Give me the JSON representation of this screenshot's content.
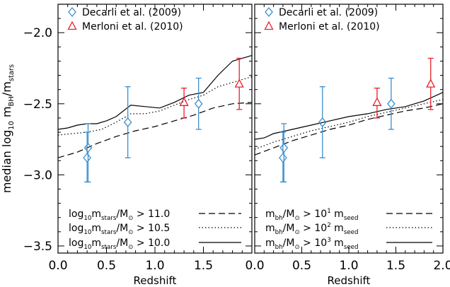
{
  "chart_data": [
    {
      "panel": "left",
      "type": "line",
      "xlabel": "Redshift",
      "ylabel": "median log10 mBH/mstars",
      "ylabel_parts": {
        "prefix": "median log",
        "log_sub": "10",
        "m": "m",
        "num_sub": "BH",
        "slash": "/m",
        "den_sub": "stars"
      },
      "xlim": [
        0.0,
        2.0
      ],
      "ylim": [
        -3.55,
        -1.8
      ],
      "xticks": [
        "0.0",
        "0.5",
        "1.0",
        "1.5"
      ],
      "yticks": [
        "-2.0",
        "-2.5",
        "-3.0",
        "-3.5"
      ],
      "points_series": [
        {
          "name": "Decarli et al. (2009)",
          "marker": "diamond",
          "color": "#3a8fcf",
          "points": [
            {
              "x": 0.31,
              "y": -2.81,
              "lo": -3.05,
              "hi": -2.64
            },
            {
              "x": 0.3,
              "y": -2.88,
              "lo": -3.05,
              "hi": -2.7
            },
            {
              "x": 0.72,
              "y": -2.63,
              "lo": -2.88,
              "hi": -2.38
            },
            {
              "x": 1.45,
              "y": -2.5,
              "lo": -2.68,
              "hi": -2.32
            }
          ]
        },
        {
          "name": "Merloni et al. (2010)",
          "marker": "triangle",
          "color": "#e8202a",
          "points": [
            {
              "x": 1.3,
              "y": -2.49,
              "lo": -2.6,
              "hi": -2.39
            },
            {
              "x": 1.87,
              "y": -2.36,
              "lo": -2.54,
              "hi": -2.18
            }
          ]
        }
      ],
      "line_series": [
        {
          "legend_parts": [
            "log",
            "10",
            "m",
            "stars",
            "/M",
            "⊙",
            " > 11.0"
          ],
          "dash": "dashed",
          "x": [
            0.0,
            0.2,
            0.4,
            0.6,
            0.8,
            1.0,
            1.2,
            1.4,
            1.6,
            1.8,
            2.0
          ],
          "y": [
            -2.88,
            -2.84,
            -2.78,
            -2.73,
            -2.69,
            -2.66,
            -2.62,
            -2.58,
            -2.53,
            -2.5,
            -2.49
          ]
        },
        {
          "legend_parts": [
            "log",
            "10",
            "m",
            "stars",
            "/M",
            "⊙",
            " > 10.5"
          ],
          "dash": "dotted",
          "x": [
            0.0,
            0.15,
            0.3,
            0.45,
            0.6,
            0.75,
            0.9,
            1.05,
            1.2,
            1.35,
            1.5,
            1.65,
            1.8,
            2.0
          ],
          "y": [
            -2.72,
            -2.71,
            -2.7,
            -2.68,
            -2.63,
            -2.57,
            -2.57,
            -2.55,
            -2.51,
            -2.47,
            -2.44,
            -2.38,
            -2.35,
            -2.31
          ]
        },
        {
          "legend_parts": [
            "log",
            "10",
            "m",
            "stars",
            "/M",
            "⊙",
            " > 10.0"
          ],
          "dash": "solid",
          "x": [
            0.0,
            0.1,
            0.2,
            0.3,
            0.4,
            0.5,
            0.6,
            0.75,
            0.9,
            1.05,
            1.2,
            1.35,
            1.5,
            1.65,
            1.8,
            2.0
          ],
          "y": [
            -2.68,
            -2.67,
            -2.65,
            -2.64,
            -2.64,
            -2.62,
            -2.59,
            -2.51,
            -2.52,
            -2.53,
            -2.49,
            -2.44,
            -2.42,
            -2.3,
            -2.2,
            -2.16
          ]
        }
      ]
    },
    {
      "panel": "right",
      "type": "line",
      "xlabel": "Redshift",
      "xlim": [
        0.0,
        2.0
      ],
      "ylim": [
        -3.55,
        -1.8
      ],
      "xticks": [
        "0.0",
        "0.5",
        "1.0",
        "1.5",
        "2.0"
      ],
      "points_series": [
        {
          "name": "Decarli et al. (2009)",
          "marker": "diamond",
          "color": "#3a8fcf",
          "points": [
            {
              "x": 0.31,
              "y": -2.81,
              "lo": -3.05,
              "hi": -2.64
            },
            {
              "x": 0.3,
              "y": -2.88,
              "lo": -3.05,
              "hi": -2.7
            },
            {
              "x": 0.72,
              "y": -2.63,
              "lo": -2.88,
              "hi": -2.38
            },
            {
              "x": 1.45,
              "y": -2.5,
              "lo": -2.68,
              "hi": -2.32
            }
          ]
        },
        {
          "name": "Merloni et al. (2010)",
          "marker": "triangle",
          "color": "#e8202a",
          "points": [
            {
              "x": 1.3,
              "y": -2.49,
              "lo": -2.6,
              "hi": -2.39
            },
            {
              "x": 1.87,
              "y": -2.36,
              "lo": -2.54,
              "hi": -2.18
            }
          ]
        }
      ],
      "line_series": [
        {
          "legend_parts": [
            "m",
            "bh",
            "/M",
            "⊙",
            " > 10",
            "1",
            " m",
            "seed"
          ],
          "dash": "dashed",
          "x": [
            0.0,
            0.2,
            0.4,
            0.6,
            0.8,
            1.0,
            1.2,
            1.4,
            1.6,
            1.8,
            2.0
          ],
          "y": [
            -2.86,
            -2.81,
            -2.76,
            -2.72,
            -2.68,
            -2.65,
            -2.61,
            -2.58,
            -2.55,
            -2.53,
            -2.5
          ]
        },
        {
          "legend_parts": [
            "m",
            "bh",
            "/M",
            "⊙",
            " > 10",
            "2",
            " m",
            "seed"
          ],
          "dash": "dotted",
          "x": [
            0.0,
            0.2,
            0.4,
            0.6,
            0.8,
            1.0,
            1.2,
            1.4,
            1.6,
            1.8,
            2.0
          ],
          "y": [
            -2.82,
            -2.77,
            -2.73,
            -2.69,
            -2.66,
            -2.63,
            -2.59,
            -2.56,
            -2.53,
            -2.5,
            -2.47
          ]
        },
        {
          "legend_parts": [
            "m",
            "bh",
            "/M",
            "⊙",
            " > 10",
            "3",
            " m",
            "seed"
          ],
          "dash": "solid",
          "x": [
            0.0,
            0.1,
            0.2,
            0.4,
            0.6,
            0.8,
            1.0,
            1.2,
            1.4,
            1.6,
            1.8,
            2.0
          ],
          "y": [
            -2.75,
            -2.74,
            -2.71,
            -2.68,
            -2.65,
            -2.62,
            -2.59,
            -2.57,
            -2.54,
            -2.52,
            -2.48,
            -2.42
          ]
        }
      ]
    }
  ]
}
